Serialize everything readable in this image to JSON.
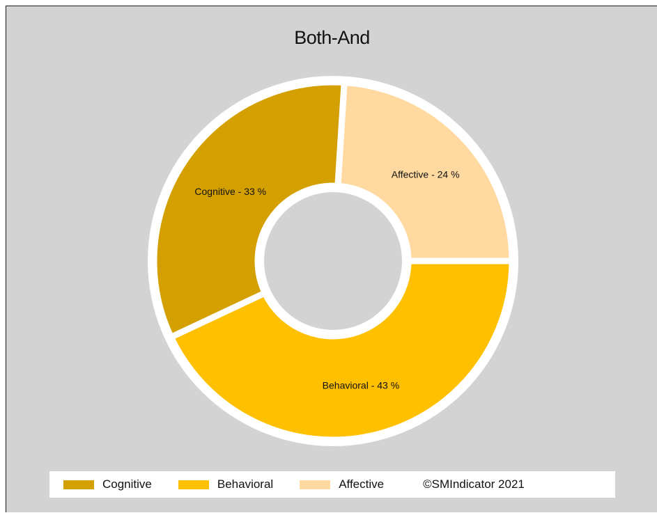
{
  "chart_data": {
    "type": "pie",
    "variant": "donut",
    "title": "Both-And",
    "slices": [
      {
        "label": "Affective",
        "value": 24,
        "display": "Affective - 24 %",
        "color": "#ffd9a0"
      },
      {
        "label": "Cognitive",
        "value": 33,
        "display": "Cognitive - 33 %",
        "color": "#d4a000"
      },
      {
        "label": "Behavioral",
        "value": 43,
        "display": "Behavioral - 43 %",
        "color": "#ffc000"
      }
    ],
    "legend": {
      "placement": "bottom",
      "items": [
        {
          "label": "Cognitive",
          "color": "#d4a000"
        },
        {
          "label": "Behavioral",
          "color": "#ffc000"
        },
        {
          "label": "Affective",
          "color": "#ffd9a0"
        }
      ]
    },
    "background_color": "#d3d3d3",
    "separator_color": "#ffffff"
  },
  "footer": {
    "copyright": "©SMIndicator 2021"
  }
}
